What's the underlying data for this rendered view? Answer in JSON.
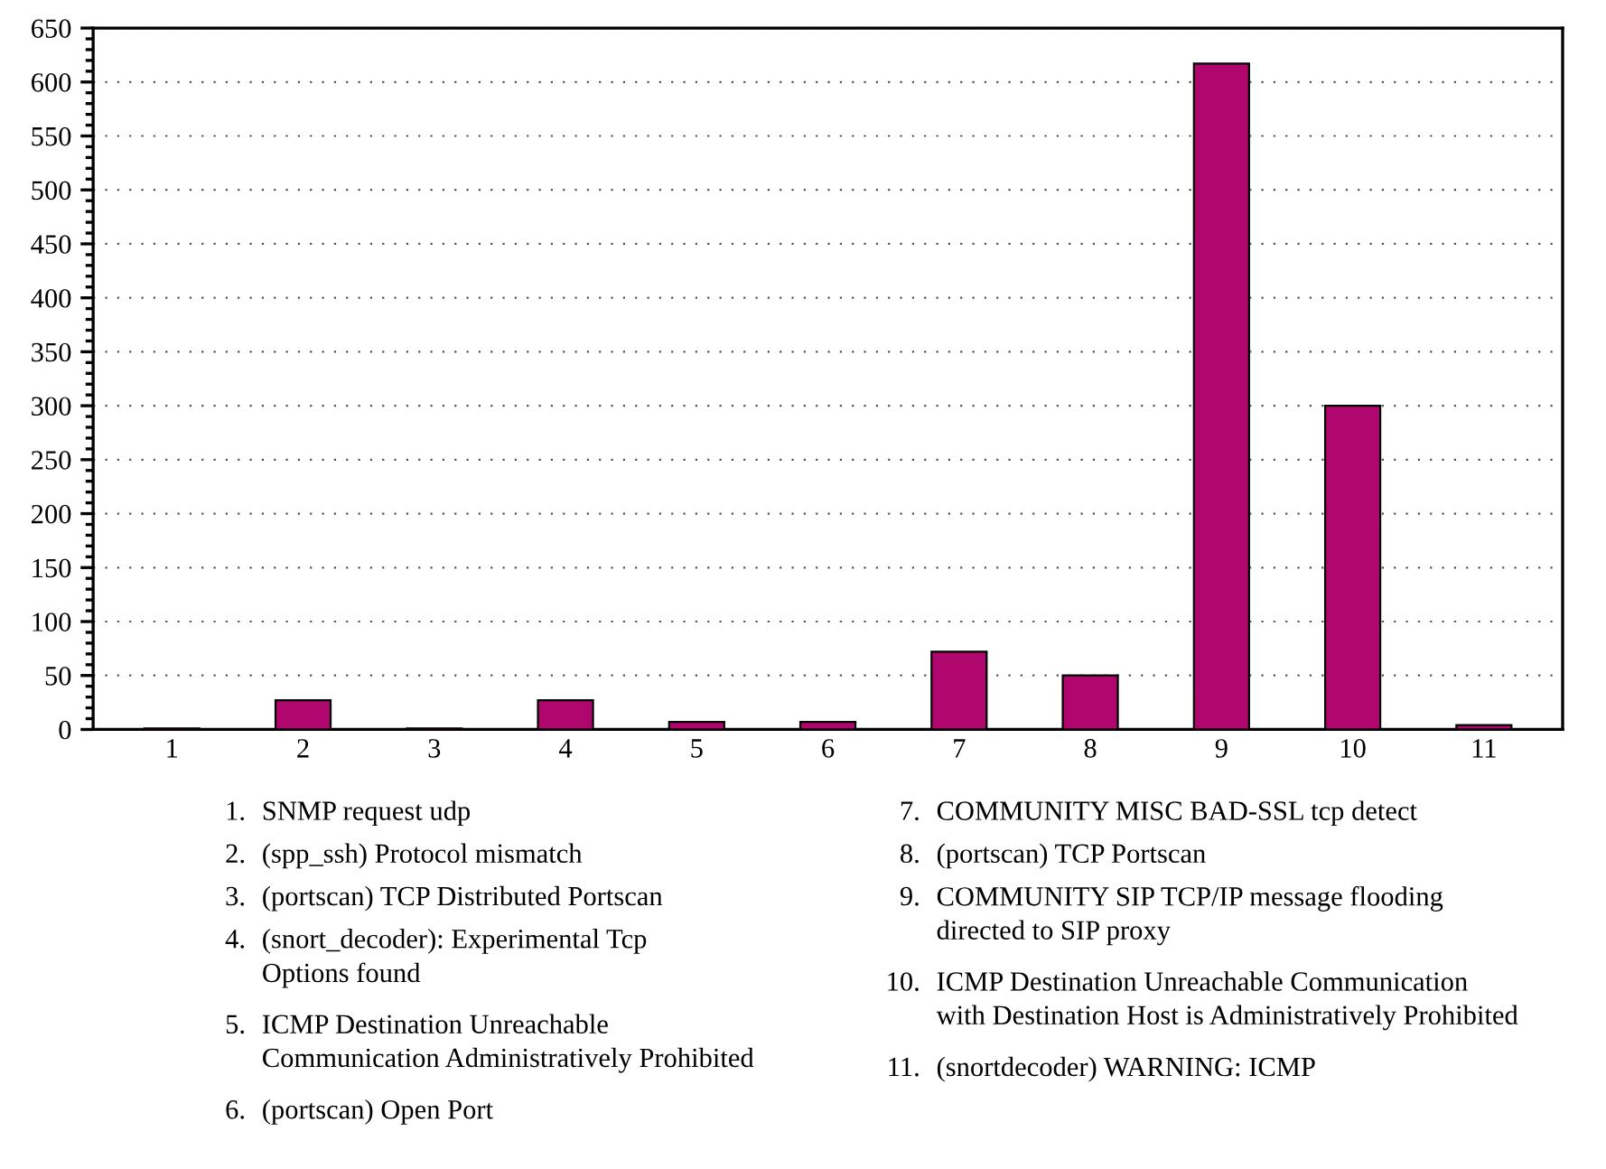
{
  "chart_data": {
    "type": "bar",
    "categories": [
      "1",
      "2",
      "3",
      "4",
      "5",
      "6",
      "7",
      "8",
      "9",
      "10",
      "11"
    ],
    "values": [
      1,
      27,
      1,
      27,
      7,
      7,
      72,
      50,
      617,
      300,
      4
    ],
    "color": "#b0076e",
    "ylim": [
      0,
      650
    ],
    "yticks": [
      0,
      50,
      100,
      150,
      200,
      250,
      300,
      350,
      400,
      450,
      500,
      550,
      600,
      650
    ],
    "grid": "y",
    "annotations": [
      "1. SNMP request udp",
      "2. (spp_ssh) Protocol mismatch",
      "3. (portscan) TCP Distributed Portscan",
      "4. (snort_decoder): Experimental Tcp\nOptions found",
      "5. ICMP Destination Unreachable\nCommunication Administratively Prohibited",
      "6. (portscan) Open Port",
      "7. COMMUNITY MISC BAD-SSL tcp detect",
      "8. (portscan) TCP Portscan",
      "9. COMMUNITY SIP TCP/IP message flooding\ndirected to SIP proxy",
      "10. ICMP Destination Unreachable Communication\nwith Destination Host is Administratively Prohibited",
      "11. (snortdecoder) WARNING: ICMP"
    ]
  }
}
